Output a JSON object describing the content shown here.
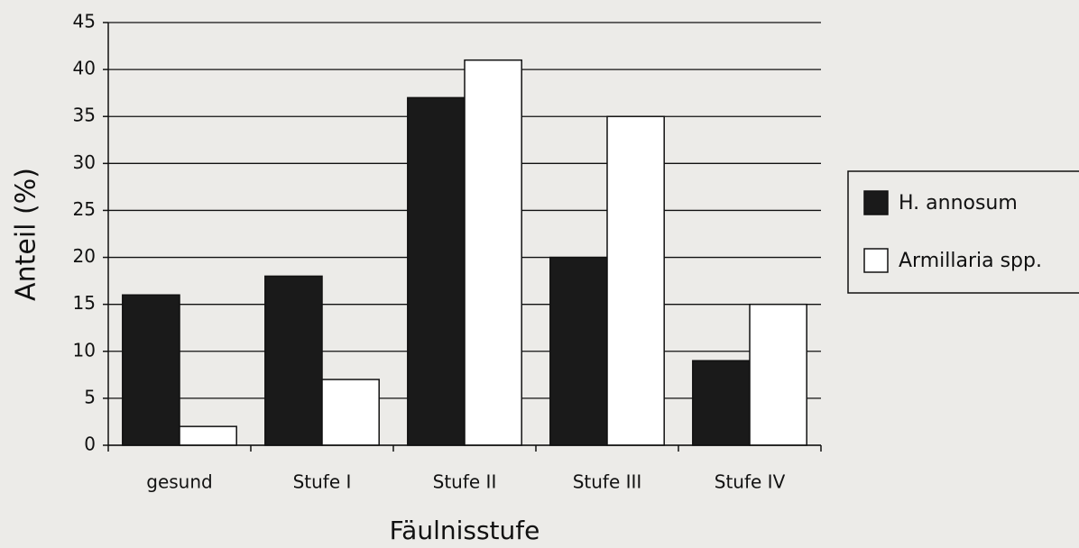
{
  "chart_data": {
    "type": "bar",
    "y_label": "Anteil (%)",
    "x_label": "Fäulnisstufe",
    "categories": [
      "gesund",
      "Stufe I",
      "Stufe II",
      "Stufe III",
      "Stufe IV"
    ],
    "series": [
      {
        "name": "H. annosum",
        "color": "#1a1a1a",
        "values": [
          16,
          18,
          37,
          20,
          9
        ]
      },
      {
        "name": "Armillaria spp.",
        "color": "#ffffff",
        "values": [
          2,
          7,
          41,
          35,
          15
        ]
      }
    ],
    "ylim": [
      0,
      45
    ],
    "yticks": [
      0,
      5,
      10,
      15,
      20,
      25,
      30,
      35,
      40,
      45
    ],
    "grid": true,
    "legend": "right"
  }
}
